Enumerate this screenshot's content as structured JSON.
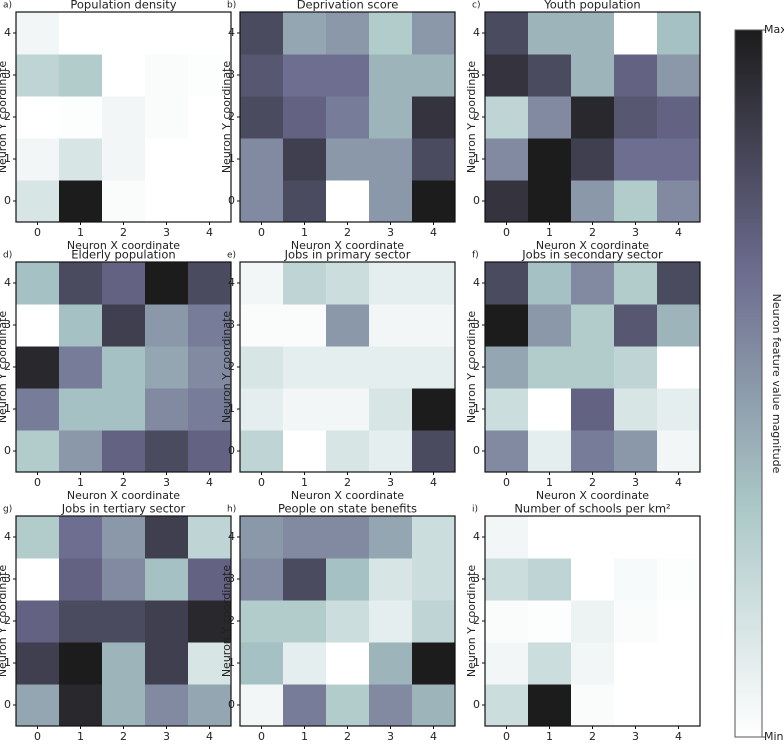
{
  "chart_data": [
    {
      "type": "heatmap",
      "label": "a)",
      "title": "Population density",
      "xlabel": "Neuron X coordinate",
      "ylabel": "Neuron Y coordinate",
      "xticks": [
        0,
        1,
        2,
        3,
        4
      ],
      "yticks": [
        0,
        1,
        2,
        3,
        4
      ],
      "z": [
        [
          0.15,
          1.0,
          0.02,
          0,
          0
        ],
        [
          0.05,
          0.15,
          0.05,
          0,
          0
        ],
        [
          0,
          0.01,
          0.05,
          0.02,
          0
        ],
        [
          0.25,
          0.3,
          0,
          0.02,
          0.01
        ],
        [
          0.05,
          0,
          0,
          0,
          0
        ]
      ]
    },
    {
      "type": "heatmap",
      "label": "b)",
      "title": "Deprivation score",
      "xlabel": "Neuron X coordinate",
      "ylabel": "Neuron Y coordinate",
      "xticks": [
        0,
        1,
        2,
        3,
        4
      ],
      "yticks": [
        0,
        1,
        2,
        3,
        4
      ],
      "z": [
        [
          0.55,
          0.8,
          0,
          0.5,
          1.0
        ],
        [
          0.55,
          0.85,
          0.5,
          0.5,
          0.8
        ],
        [
          0.8,
          0.7,
          0.6,
          0.4,
          0.9
        ],
        [
          0.75,
          0.65,
          0.65,
          0.4,
          0.4
        ],
        [
          0.8,
          0.45,
          0.5,
          0.3,
          0.5
        ]
      ]
    },
    {
      "type": "heatmap",
      "label": "c)",
      "title": "Youth population",
      "xlabel": "Neuron X coordinate",
      "ylabel": "Neuron Y coordinate",
      "xticks": [
        0,
        1,
        2,
        3,
        4
      ],
      "yticks": [
        0,
        1,
        2,
        3,
        4
      ],
      "z": [
        [
          0.9,
          1.0,
          0.5,
          0.3,
          0.55
        ],
        [
          0.55,
          1.0,
          0.85,
          0.65,
          0.65
        ],
        [
          0.25,
          0.55,
          0.95,
          0.75,
          0.7
        ],
        [
          0.9,
          0.8,
          0.4,
          0.7,
          0.5
        ],
        [
          0.8,
          0.4,
          0.4,
          0,
          0.35
        ]
      ]
    },
    {
      "type": "heatmap",
      "label": "d)",
      "title": "Elderly population",
      "xlabel": "Neuron X coordinate",
      "ylabel": "Neuron Y coordinate",
      "xticks": [
        0,
        1,
        2,
        3,
        4
      ],
      "yticks": [
        0,
        1,
        2,
        3,
        4
      ],
      "z": [
        [
          0.3,
          0.5,
          0.7,
          0.8,
          0.7
        ],
        [
          0.6,
          0.35,
          0.35,
          0.55,
          0.6
        ],
        [
          0.95,
          0.6,
          0.35,
          0.45,
          0.55
        ],
        [
          0,
          0.35,
          0.85,
          0.5,
          0.6
        ],
        [
          0.35,
          0.8,
          0.7,
          1.0,
          0.8
        ]
      ]
    },
    {
      "type": "heatmap",
      "label": "e)",
      "title": "Jobs in primary sector",
      "xlabel": "Neuron X coordinate",
      "ylabel": "Neuron Y coordinate",
      "xticks": [
        0,
        1,
        2,
        3,
        4
      ],
      "yticks": [
        0,
        1,
        2,
        3,
        4
      ],
      "z": [
        [
          0.25,
          0,
          0.15,
          0.1,
          0.8
        ],
        [
          0.1,
          0.05,
          0.05,
          0.15,
          1.0
        ],
        [
          0.15,
          0.1,
          0.1,
          0.1,
          0.1
        ],
        [
          0.02,
          0.02,
          0.5,
          0.05,
          0.05
        ],
        [
          0.05,
          0.25,
          0.2,
          0.1,
          0.1
        ]
      ]
    },
    {
      "type": "heatmap",
      "label": "f)",
      "title": "Jobs in secondary sector",
      "xlabel": "Neuron X coordinate",
      "ylabel": "Neuron Y coordinate",
      "xticks": [
        0,
        1,
        2,
        3,
        4
      ],
      "yticks": [
        0,
        1,
        2,
        3,
        4
      ],
      "z": [
        [
          0.55,
          0.1,
          0.6,
          0.5,
          0.05
        ],
        [
          0.2,
          0,
          0.7,
          0.15,
          0.1
        ],
        [
          0.45,
          0.3,
          0.3,
          0.25,
          0
        ],
        [
          1.0,
          0.5,
          0.3,
          0.75,
          0.4
        ],
        [
          0.8,
          0.35,
          0.55,
          0.3,
          0.8
        ]
      ]
    },
    {
      "type": "heatmap",
      "label": "g)",
      "title": "Jobs in tertiary sector",
      "xlabel": "Neuron X coordinate",
      "ylabel": "Neuron Y coordinate",
      "xticks": [
        0,
        1,
        2,
        3,
        4
      ],
      "yticks": [
        0,
        1,
        2,
        3,
        4
      ],
      "z": [
        [
          0.45,
          0.95,
          0.4,
          0.55,
          0.45
        ],
        [
          0.85,
          1.0,
          0.4,
          0.85,
          0.15
        ],
        [
          0.7,
          0.8,
          0.8,
          0.85,
          0.95
        ],
        [
          0,
          0.7,
          0.55,
          0.35,
          0.7
        ],
        [
          0.3,
          0.65,
          0.5,
          0.85,
          0.25
        ]
      ]
    },
    {
      "type": "heatmap",
      "label": "h)",
      "title": "People on state benefits",
      "xlabel": "Neuron X coordinate",
      "ylabel": "Neuron Y coordinate",
      "xticks": [
        0,
        1,
        2,
        3,
        4
      ],
      "yticks": [
        0,
        1,
        2,
        3,
        4
      ],
      "z": [
        [
          0.05,
          0.6,
          0.3,
          0.55,
          0.4
        ],
        [
          0.35,
          0.1,
          0,
          0.4,
          1.0
        ],
        [
          0.3,
          0.3,
          0.2,
          0.1,
          0.25
        ],
        [
          0.55,
          0.8,
          0.35,
          0.15,
          0.2
        ],
        [
          0.5,
          0.55,
          0.55,
          0.45,
          0.2
        ]
      ]
    },
    {
      "type": "heatmap",
      "label": "i)",
      "title": "Number of schools per km²",
      "xlabel": "Neuron X coordinate",
      "ylabel": "Neuron Y coordinate",
      "xticks": [
        0,
        1,
        2,
        3,
        4
      ],
      "yticks": [
        0,
        1,
        2,
        3,
        4
      ],
      "z": [
        [
          0.2,
          1.0,
          0.02,
          0,
          0
        ],
        [
          0.05,
          0.2,
          0.05,
          0,
          0
        ],
        [
          0.02,
          0.01,
          0.07,
          0.02,
          0
        ],
        [
          0.2,
          0.25,
          0,
          0.03,
          0.01
        ],
        [
          0.05,
          0,
          0,
          0,
          0
        ]
      ]
    }
  ],
  "colorbar": {
    "label": "Neuron feature value magnitude",
    "clim": [
      0,
      1
    ],
    "ticks": [
      {
        "value": 1,
        "label": "Max"
      },
      {
        "value": 0,
        "label": "Min."
      }
    ],
    "colormap": [
      "#ffffff",
      "#a9c6c6",
      "#6b6a8d",
      "#1c1c1c"
    ]
  }
}
